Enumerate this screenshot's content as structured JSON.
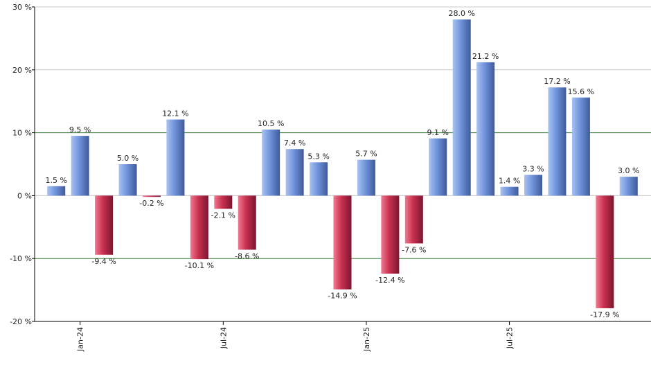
{
  "chart_data": {
    "type": "bar",
    "categories": [
      null,
      "Jan-24",
      null,
      null,
      null,
      null,
      null,
      "Jul-24",
      null,
      null,
      null,
      null,
      null,
      "Jan-25",
      null,
      null,
      null,
      null,
      null,
      "Jul-25",
      null,
      null,
      null,
      null,
      null
    ],
    "values": [
      1.5,
      9.5,
      -9.4,
      5.0,
      -0.2,
      12.1,
      -10.1,
      -2.1,
      -8.6,
      10.5,
      7.4,
      5.3,
      -14.9,
      5.7,
      -12.4,
      -7.6,
      9.1,
      28.0,
      21.2,
      1.4,
      3.3,
      17.2,
      15.6,
      -17.9,
      3.0
    ],
    "value_labels": [
      "1.5 %",
      "9.5 %",
      "-9.4 %",
      "5.0 %",
      "-0.2 %",
      "12.1 %",
      "-10.1 %",
      "-2.1 %",
      "-8.6 %",
      "10.5 %",
      "7.4 %",
      "5.3 %",
      "-14.9 %",
      "5.7 %",
      "-12.4 %",
      "-7.6 %",
      "9.1 %",
      "28.0 %",
      "21.2 %",
      "1.4 %",
      "3.3 %",
      "17.2 %",
      "15.6 %",
      "-17.9 %",
      "3.0 %"
    ],
    "positive_color": "#6f93dc",
    "negative_color": "#c8304f",
    "ylim": [
      -20,
      30
    ],
    "yticks": [
      {
        "value": -20,
        "label": "-20 %"
      },
      {
        "value": -10,
        "label": "-10 %"
      },
      {
        "value": 0,
        "label": "0 %"
      },
      {
        "value": 10,
        "label": "10 %"
      },
      {
        "value": 20,
        "label": "20 %"
      },
      {
        "value": 30,
        "label": "30 %"
      }
    ],
    "grid": true,
    "grid_colors": [
      "#000000",
      "#2e7d32",
      "#c8c8c8",
      "#2e7d32",
      "#c8c8c8",
      "#c8c8c8"
    ]
  }
}
